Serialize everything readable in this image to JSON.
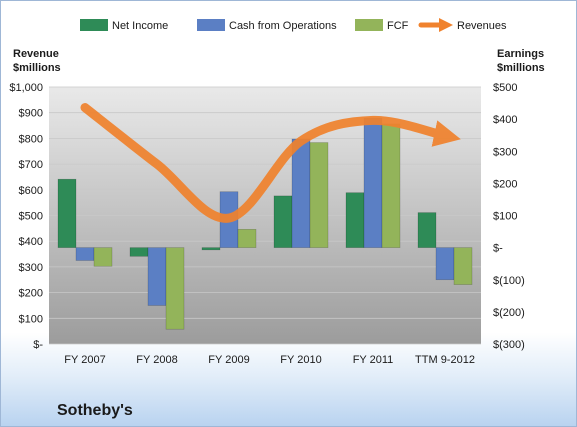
{
  "chart_data": {
    "type": "bar",
    "title": "",
    "company": "Sotheby's",
    "categories": [
      "FY 2007",
      "FY 2008",
      "FY 2009",
      "FY 2010",
      "FY 2011",
      "TTM 9-2012"
    ],
    "left_axis": {
      "label_line1": "Revenue",
      "label_line2": "$millions",
      "ticks": [
        "$-",
        "$100",
        "$200",
        "$300",
        "$400",
        "$500",
        "$600",
        "$700",
        "$800",
        "$900",
        "$1,000"
      ],
      "ylim": [
        0,
        1000
      ]
    },
    "right_axis": {
      "label_line1": "Earnings",
      "label_line2": "$millions",
      "ticks": [
        "$(300)",
        "$(200)",
        "$(100)",
        "$-",
        "$100",
        "$200",
        "$300",
        "$400",
        "$500"
      ],
      "ylim": [
        -300,
        500
      ]
    },
    "series": [
      {
        "name": "Net Income",
        "axis": "right",
        "kind": "bar",
        "color": "#2e8b57",
        "values": [
          213,
          -27,
          -7,
          161,
          171,
          109
        ]
      },
      {
        "name": "Cash from Operations",
        "axis": "right",
        "kind": "bar",
        "color": "#5b7fc4",
        "values": [
          -40,
          -180,
          174,
          338,
          403,
          -100
        ]
      },
      {
        "name": "FCF",
        "axis": "right",
        "kind": "bar",
        "color": "#93b45a",
        "values": [
          -58,
          -254,
          57,
          327,
          385,
          -115
        ]
      },
      {
        "name": "Revenues",
        "axis": "left",
        "kind": "line",
        "color": "#f0822d",
        "values": [
          920,
          700,
          490,
          790,
          870,
          810
        ]
      }
    ],
    "legend_position": "top",
    "grid": true
  }
}
